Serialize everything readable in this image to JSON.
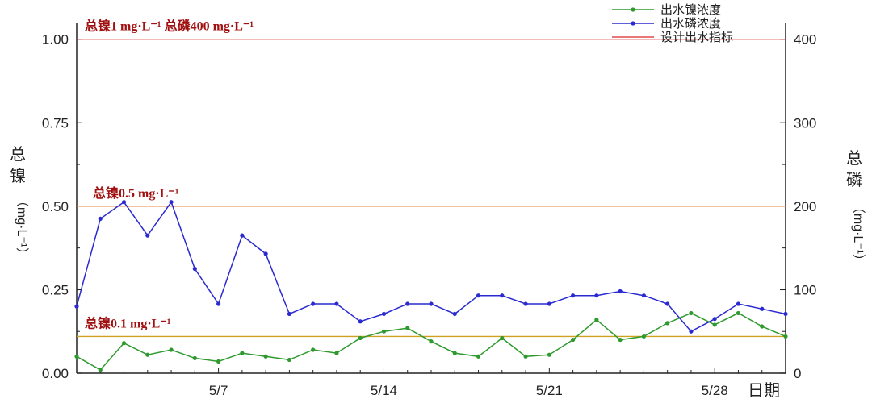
{
  "chart_data": {
    "type": "line",
    "xlabel": "日期",
    "x_ticks": [
      "5/7",
      "5/14",
      "5/21",
      "5/28"
    ],
    "x_tick_index": [
      6,
      13,
      20,
      27
    ],
    "y_left": {
      "label_chars": [
        "总",
        "镍"
      ],
      "unit": "（mg·L⁻¹）",
      "ylim": [
        0,
        1.05
      ],
      "ticks": [
        "0.00",
        "0.25",
        "0.50",
        "0.75",
        "1.00"
      ],
      "tick_values": [
        0,
        0.25,
        0.5,
        0.75,
        1.0
      ]
    },
    "y_right": {
      "label_chars": [
        "总",
        "磷"
      ],
      "unit": "（mg·L⁻¹）",
      "ylim": [
        0,
        420
      ],
      "ticks": [
        "0",
        "100",
        "200",
        "300",
        "400"
      ],
      "tick_values": [
        0,
        100,
        200,
        300,
        400
      ]
    },
    "series": [
      {
        "name": "出水镍浓度",
        "axis": "left",
        "color": "#2e9a2e",
        "values": [
          0.05,
          0.01,
          0.09,
          0.055,
          0.07,
          0.045,
          0.035,
          0.06,
          0.05,
          0.04,
          0.07,
          0.06,
          0.105,
          0.125,
          0.135,
          0.095,
          0.06,
          0.05,
          0.105,
          0.05,
          0.055,
          0.1,
          0.16,
          0.1,
          0.11,
          0.15,
          0.18,
          0.145,
          0.18,
          0.14,
          0.11
        ]
      },
      {
        "name": "出水磷浓度",
        "axis": "right",
        "color": "#2a2ad0",
        "values": [
          80,
          185,
          205,
          165,
          205,
          125,
          83,
          165,
          143,
          71,
          83,
          83,
          62,
          71,
          83,
          83,
          71,
          93,
          93,
          83,
          83,
          93,
          93,
          98,
          93,
          83,
          50,
          65,
          83,
          77,
          71
        ]
      }
    ],
    "reference_lines": [
      {
        "name": "设计出水指标",
        "label": "总镍1 mg·L⁻¹  总磷400 mg·L⁻¹",
        "value_left": 1.0,
        "color": "#e04a4a"
      },
      {
        "name": "设计出水指标",
        "label": "总镍0.5 mg·L⁻¹",
        "value_left": 0.5,
        "color": "#e08a4a"
      },
      {
        "name": "设计出水指标",
        "label": "总镍0.1 mg·L⁻¹",
        "value_left": 0.11,
        "color": "#d0a020"
      }
    ],
    "legend": {
      "placement": "top-right",
      "entries": [
        {
          "label": "出水镍浓度",
          "color": "#2e9a2e",
          "marker": true
        },
        {
          "label": "出水磷浓度",
          "color": "#2a2ad0",
          "marker": true
        },
        {
          "label": "设计出水指标",
          "color": "#e04a4a",
          "marker": false
        }
      ]
    },
    "grid": false
  }
}
